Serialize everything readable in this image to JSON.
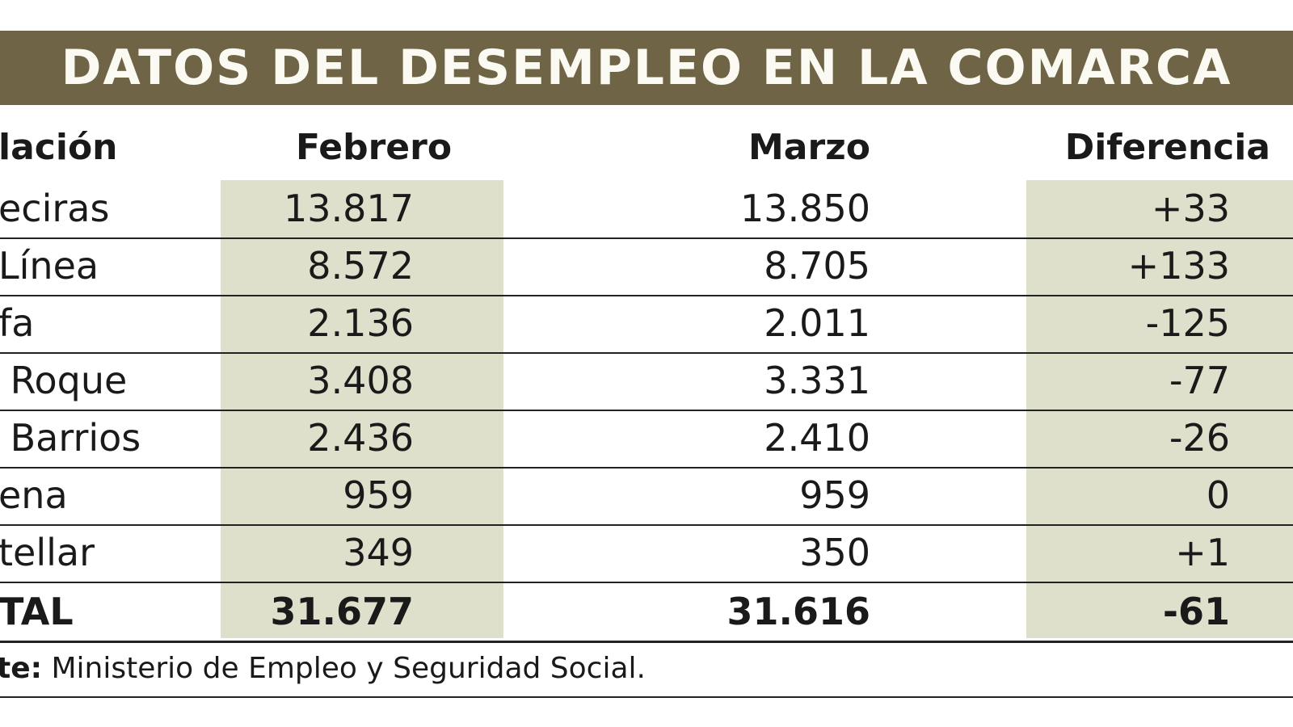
{
  "title": "DATOS DEL DESEMPLEO EN LA COMARCA",
  "colors": {
    "title_bar": "#6f6446",
    "title_text": "#fbfaf2",
    "shaded_columns": "#dfe0cb"
  },
  "headers": {
    "name": "lación",
    "feb": "Febrero",
    "mar": "Marzo",
    "dif": "Diferencia"
  },
  "rows": [
    {
      "name": "eciras",
      "feb": "13.817",
      "mar": "13.850",
      "dif": "+33"
    },
    {
      "name": "Línea",
      "feb": "8.572",
      "mar": "8.705",
      "dif": "+133"
    },
    {
      "name": "fa",
      "feb": "2.136",
      "mar": "2.011",
      "dif": "-125"
    },
    {
      "name": " Roque",
      "feb": "3.408",
      "mar": "3.331",
      "dif": "-77"
    },
    {
      "name": " Barrios",
      "feb": "2.436",
      "mar": "2.410",
      "dif": "-26"
    },
    {
      "name": "ena",
      "feb": "959",
      "mar": "959",
      "dif": "0"
    },
    {
      "name": "tellar",
      "feb": "349",
      "mar": "350",
      "dif": "+1"
    }
  ],
  "total": {
    "name": "TAL",
    "feb": "31.677",
    "mar": "31.616",
    "dif": "-61"
  },
  "source": {
    "label": "te:",
    "text": " Ministerio de Empleo y Seguridad Social."
  }
}
